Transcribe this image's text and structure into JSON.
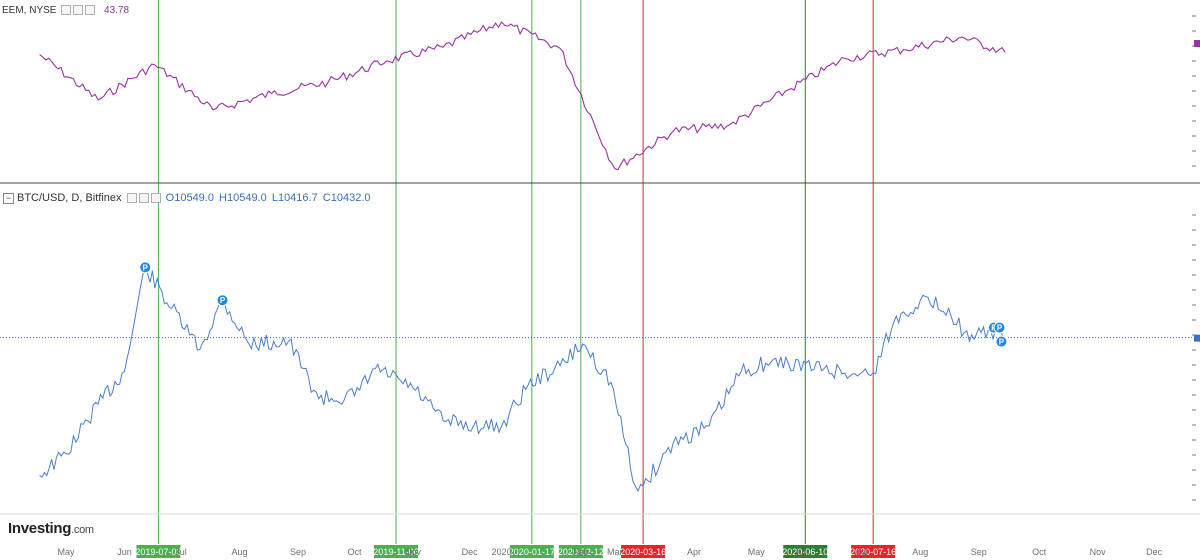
{
  "top_legend": {
    "symbol": "EEM, NYSE",
    "last_value": "43.78"
  },
  "bottom_legend": {
    "symbol": "BTC/USD, D, Bitfinex",
    "open": "O10549.0",
    "high": "H10549.0",
    "low": "L10416.7",
    "close": "C10432.0"
  },
  "logo": {
    "name": "Investing",
    "suffix": ".com"
  },
  "colors": {
    "eem_line": "#9b30a6",
    "btc_line": "#4a7ec8",
    "green_marker": "#4caf50",
    "dark_green_marker": "#2e7d32",
    "red_marker": "#e5252a",
    "price_line": "#3b6fd6",
    "axis_label": "#6f6f6f"
  },
  "month_labels": [
    "May",
    "Jun",
    "Jul",
    "Aug",
    "Sep",
    "Oct",
    "Nov",
    "Dec",
    "2020",
    "Feb",
    "Mar",
    "Apr",
    "May",
    "Jun",
    "Jul",
    "Aug",
    "Sep",
    "Oct",
    "Nov",
    "Dec"
  ],
  "chart_data": [
    {
      "type": "line",
      "title": "EEM, NYSE",
      "x": [
        "2019-05-01",
        "2019-06-01",
        "2019-07-01",
        "2019-08-01",
        "2019-09-01",
        "2019-10-01",
        "2019-11-01",
        "2019-12-01",
        "2020-01-01",
        "2020-02-01",
        "2020-03-01",
        "2020-04-01",
        "2020-05-01",
        "2020-06-01",
        "2020-07-01",
        "2020-08-01",
        "2020-09-01",
        "2020-09-24"
      ],
      "series": [
        {
          "values": [
            43.6,
            40.0,
            42.8,
            39.2,
            40.5,
            41.4,
            43.1,
            44.2,
            46.2,
            44.1,
            34.5,
            37.5,
            38.0,
            40.8,
            43.3,
            44.0,
            45.0,
            43.78
          ]
        }
      ],
      "last_value": 43.78
    },
    {
      "type": "line",
      "title": "BTC/USD, D, Bitfinex",
      "x": [
        "2019-05-01",
        "2019-05-15",
        "2019-06-01",
        "2019-06-15",
        "2019-06-26",
        "2019-07-10",
        "2019-07-25",
        "2019-08-06",
        "2019-08-20",
        "2019-09-10",
        "2019-09-26",
        "2019-10-15",
        "2019-10-26",
        "2019-11-15",
        "2019-12-01",
        "2019-12-17",
        "2020-01-01",
        "2020-01-15",
        "2020-02-01",
        "2020-02-13",
        "2020-02-28",
        "2020-03-12",
        "2020-03-16",
        "2020-04-01",
        "2020-04-20",
        "2020-05-07",
        "2020-05-20",
        "2020-06-01",
        "2020-06-20",
        "2020-07-05",
        "2020-07-16",
        "2020-07-27",
        "2020-08-10",
        "2020-08-25",
        "2020-09-05",
        "2020-09-15",
        "2020-09-24"
      ],
      "series": [
        {
          "name": "BTC/USD",
          "values": [
            5400,
            6200,
            8000,
            9200,
            13000,
            11500,
            10000,
            11800,
            10200,
            10300,
            8200,
            8300,
            9300,
            8600,
            7400,
            7200,
            7200,
            8700,
            9400,
            10200,
            8800,
            5000,
            5000,
            6600,
            7200,
            9200,
            9500,
            9500,
            9300,
            9100,
            9150,
            11000,
            11800,
            11500,
            10300,
            10700,
            10432
          ]
        }
      ],
      "last_value": 10432.0,
      "dividend_markers": [
        "P",
        "P",
        "P",
        "P",
        "P"
      ]
    }
  ],
  "vertical_markers": [
    {
      "date": "2019-07-03",
      "label": "2019-07-03",
      "color": "#4caf50"
    },
    {
      "date": "2019-11-06",
      "label": "2019-11-06",
      "color": "#4caf50"
    },
    {
      "date": "2020-01-17",
      "label": "2020-01-17",
      "color": "#4caf50"
    },
    {
      "date": "2020-02-12",
      "label": "2020-02-12",
      "color": "#4caf50"
    },
    {
      "date": "2020-03-16",
      "label": "2020-03-16",
      "color": "#e5252a"
    },
    {
      "date": "2020-06-10",
      "label": "2020-06-10",
      "color": "#2e7d32"
    },
    {
      "date": "2020-07-16",
      "label": "2020-07-16",
      "color": "#e5252a"
    }
  ]
}
